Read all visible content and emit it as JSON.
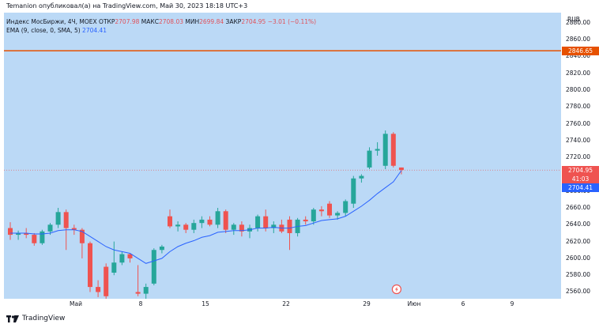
{
  "header": {
    "attribution": "Temanion опубликовал(а) на TradingView.com, Май 30, 2023 18:18 UTC+3"
  },
  "legend": {
    "symbol": "Индекс МосБиржи, 4Ч, MOEX",
    "open_label": "ОТКР",
    "open": "2707.98",
    "high_label": "МАКС",
    "high": "2708.03",
    "low_label": "МИН",
    "low": "2699.84",
    "close_label": "ЗАКР",
    "close": "2704.95",
    "change": "−3.01 (−0.11%)",
    "ema_label": "EMA (9, close, 0, SMA, 5)",
    "ema_value": "2704.41"
  },
  "scale": {
    "currency": "RUB"
  },
  "badges": {
    "level": "2846.65",
    "price": "2704.95",
    "countdown": "41:03",
    "ema": "2704.41"
  },
  "footer": {
    "brand": "TradingView"
  },
  "colors": {
    "up": "#26a69a",
    "down": "#ef5350",
    "ema": "#2962ff",
    "level": "#e65100",
    "background": "#bbd9f6"
  },
  "chart_data": {
    "type": "candlestick",
    "ylim": [
      2552,
      2892
    ],
    "y_ticks": [
      2560,
      2580,
      2600,
      2620,
      2640,
      2660,
      2680,
      2700,
      2720,
      2740,
      2760,
      2780,
      2800,
      2820,
      2840,
      2860,
      2880
    ],
    "y_tick_labels": [
      "2560.00",
      "2580.00",
      "2600.00",
      "2620.00",
      "2640.00",
      "2660.00",
      "2680.00",
      "2700.00",
      "2720.00",
      "2740.00",
      "2760.00",
      "2780.00",
      "2800.00",
      "2820.00",
      "2840.00",
      "2860.00",
      "2880.00"
    ],
    "x_ticks": [
      "Май",
      "8",
      "15",
      "22",
      "29",
      "Июн",
      "6",
      "9"
    ],
    "horizontal_line": 2846.65,
    "current_price": 2704.95,
    "candles": [
      {
        "o": 2636,
        "h": 2643,
        "l": 2622,
        "c": 2628
      },
      {
        "o": 2628,
        "h": 2633,
        "l": 2622,
        "c": 2630
      },
      {
        "o": 2630,
        "h": 2636,
        "l": 2624,
        "c": 2628
      },
      {
        "o": 2628,
        "h": 2630,
        "l": 2615,
        "c": 2618
      },
      {
        "o": 2618,
        "h": 2634,
        "l": 2616,
        "c": 2632
      },
      {
        "o": 2632,
        "h": 2642,
        "l": 2628,
        "c": 2640
      },
      {
        "o": 2640,
        "h": 2660,
        "l": 2636,
        "c": 2655
      },
      {
        "o": 2655,
        "h": 2658,
        "l": 2610,
        "c": 2636
      },
      {
        "o": 2636,
        "h": 2640,
        "l": 2628,
        "c": 2634
      },
      {
        "o": 2634,
        "h": 2636,
        "l": 2600,
        "c": 2618
      },
      {
        "o": 2618,
        "h": 2620,
        "l": 2560,
        "c": 2566
      },
      {
        "o": 2566,
        "h": 2574,
        "l": 2554,
        "c": 2560
      },
      {
        "o": 2590,
        "h": 2594,
        "l": 2550,
        "c": 2555
      },
      {
        "o": 2583,
        "h": 2620,
        "l": 2580,
        "c": 2595
      },
      {
        "o": 2595,
        "h": 2608,
        "l": 2592,
        "c": 2605
      },
      {
        "o": 2605,
        "h": 2606,
        "l": 2595,
        "c": 2600
      },
      {
        "o": 2560,
        "h": 2592,
        "l": 2555,
        "c": 2558
      },
      {
        "o": 2558,
        "h": 2570,
        "l": 2552,
        "c": 2566
      },
      {
        "o": 2570,
        "h": 2612,
        "l": 2568,
        "c": 2610
      },
      {
        "o": 2610,
        "h": 2616,
        "l": 2606,
        "c": 2614
      },
      {
        "o": 2650,
        "h": 2658,
        "l": 2636,
        "c": 2638
      },
      {
        "o": 2638,
        "h": 2644,
        "l": 2632,
        "c": 2640
      },
      {
        "o": 2640,
        "h": 2642,
        "l": 2630,
        "c": 2634
      },
      {
        "o": 2634,
        "h": 2646,
        "l": 2630,
        "c": 2642
      },
      {
        "o": 2642,
        "h": 2650,
        "l": 2636,
        "c": 2646
      },
      {
        "o": 2646,
        "h": 2650,
        "l": 2638,
        "c": 2640
      },
      {
        "o": 2640,
        "h": 2660,
        "l": 2636,
        "c": 2656
      },
      {
        "o": 2656,
        "h": 2658,
        "l": 2630,
        "c": 2634
      },
      {
        "o": 2634,
        "h": 2642,
        "l": 2628,
        "c": 2640
      },
      {
        "o": 2640,
        "h": 2644,
        "l": 2626,
        "c": 2632
      },
      {
        "o": 2632,
        "h": 2640,
        "l": 2624,
        "c": 2636
      },
      {
        "o": 2636,
        "h": 2652,
        "l": 2632,
        "c": 2650
      },
      {
        "o": 2650,
        "h": 2658,
        "l": 2632,
        "c": 2636
      },
      {
        "o": 2636,
        "h": 2644,
        "l": 2630,
        "c": 2640
      },
      {
        "o": 2640,
        "h": 2646,
        "l": 2630,
        "c": 2632
      },
      {
        "o": 2646,
        "h": 2650,
        "l": 2610,
        "c": 2630
      },
      {
        "o": 2630,
        "h": 2648,
        "l": 2626,
        "c": 2646
      },
      {
        "o": 2646,
        "h": 2650,
        "l": 2640,
        "c": 2644
      },
      {
        "o": 2644,
        "h": 2660,
        "l": 2640,
        "c": 2658
      },
      {
        "o": 2658,
        "h": 2662,
        "l": 2650,
        "c": 2656
      },
      {
        "o": 2665,
        "h": 2668,
        "l": 2648,
        "c": 2651
      },
      {
        "o": 2651,
        "h": 2656,
        "l": 2646,
        "c": 2654
      },
      {
        "o": 2654,
        "h": 2670,
        "l": 2650,
        "c": 2668
      },
      {
        "o": 2665,
        "h": 2698,
        "l": 2660,
        "c": 2695
      },
      {
        "o": 2695,
        "h": 2700,
        "l": 2690,
        "c": 2698
      },
      {
        "o": 2708,
        "h": 2732,
        "l": 2706,
        "c": 2728
      },
      {
        "o": 2728,
        "h": 2738,
        "l": 2722,
        "c": 2730
      },
      {
        "o": 2710,
        "h": 2752,
        "l": 2706,
        "c": 2748
      },
      {
        "o": 2748,
        "h": 2750,
        "l": 2708,
        "c": 2710
      },
      {
        "o": 2707.98,
        "h": 2708.03,
        "l": 2699.84,
        "c": 2704.95
      }
    ],
    "ema": [
      2630,
      2630,
      2630,
      2629,
      2629,
      2630,
      2633,
      2634,
      2634,
      2632,
      2626,
      2620,
      2614,
      2610,
      2608,
      2606,
      2600,
      2594,
      2597,
      2600,
      2608,
      2614,
      2618,
      2621,
      2625,
      2627,
      2631,
      2632,
      2633,
      2633,
      2634,
      2636,
      2636,
      2637,
      2636,
      2636,
      2638,
      2639,
      2642,
      2645,
      2646,
      2647,
      2650,
      2656,
      2662,
      2669,
      2677,
      2684,
      2691,
      2704.41
    ]
  }
}
